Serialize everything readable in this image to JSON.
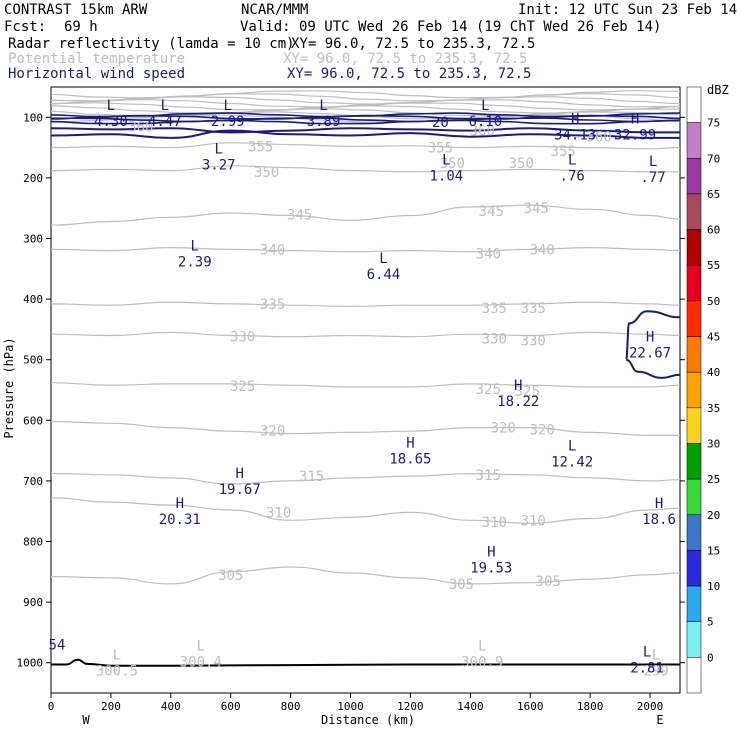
{
  "header": {
    "model": "CONTRAST 15km ARW",
    "center": "NCAR/MMM",
    "init": "Init: 12 UTC Sun 23 Feb 14",
    "fcst_label": "Fcst:",
    "fcst_value": "69 h",
    "valid": "Valid: 09 UTC Wed 26 Feb 14 (19 ChT Wed 26 Feb 14)",
    "fields": [
      {
        "name": "Radar reflectivity (lamda = 10 cm)",
        "xy": "XY=  96.0, 72.5 to 235.3, 72.5",
        "color": "#000000"
      },
      {
        "name": "Potential temperature",
        "xy": "XY=  96.0, 72.5 to 235.3, 72.5",
        "color": "#bdbdbd"
      },
      {
        "name": "Horizontal wind speed",
        "xy": "XY=  96.0, 72.5 to 235.3, 72.5",
        "color": "#1a1a80"
      }
    ]
  },
  "axes": {
    "ylabel": "Pressure (hPa)",
    "xlabel": "Distance (km)",
    "yticks": [
      100,
      200,
      300,
      400,
      500,
      600,
      700,
      800,
      900,
      1000
    ],
    "xticks": [
      0,
      200,
      400,
      600,
      800,
      1000,
      1200,
      1400,
      1600,
      1800,
      2000
    ],
    "west": "W",
    "east": "E"
  },
  "colorbar": {
    "unit": "dBZ",
    "levels": [
      {
        "label": "75",
        "color": "#c27ec9"
      },
      {
        "label": "70",
        "color": "#9a3aa2"
      },
      {
        "label": "65",
        "color": "#a84a5c"
      },
      {
        "label": "60",
        "color": "#b00000"
      },
      {
        "label": "55",
        "color": "#e8001e"
      },
      {
        "label": "50",
        "color": "#ff2a00"
      },
      {
        "label": "45",
        "color": "#ff7a00"
      },
      {
        "label": "40",
        "color": "#ffa200"
      },
      {
        "label": "35",
        "color": "#ffd21e"
      },
      {
        "label": "30",
        "color": "#00a000"
      },
      {
        "label": "25",
        "color": "#38d838"
      },
      {
        "label": "20",
        "color": "#3c78c8"
      },
      {
        "label": "15",
        "color": "#2a2ae0"
      },
      {
        "label": "10",
        "color": "#2aa8f0"
      },
      {
        "label": "5",
        "color": "#7af0f0"
      },
      {
        "label": "0",
        "color": "#ffffff"
      }
    ]
  },
  "chart_data": {
    "type": "contour cross-section",
    "xlim": [
      0,
      2100
    ],
    "ylim": [
      1050,
      50
    ],
    "theta_contours": [
      {
        "label": "355",
        "x": [
          0,
          200,
          400,
          600,
          800,
          1000,
          1200,
          1400,
          1600,
          1800,
          2000,
          2100
        ],
        "p": [
          150,
          148,
          150,
          142,
          145,
          148,
          147,
          150,
          148,
          150,
          152,
          150
        ]
      },
      {
        "label": "350",
        "x": [
          0,
          200,
          400,
          600,
          800,
          1000,
          1200,
          1400,
          1600,
          1800,
          2000,
          2100
        ],
        "p": [
          188,
          186,
          188,
          180,
          183,
          188,
          190,
          188,
          186,
          188,
          190,
          190
        ]
      },
      {
        "label": "345",
        "x": [
          0,
          200,
          400,
          600,
          800,
          1000,
          1200,
          1400,
          1600,
          1800,
          2000,
          2100
        ],
        "p": [
          278,
          272,
          265,
          258,
          262,
          270,
          262,
          248,
          245,
          252,
          262,
          268
        ]
      },
      {
        "label": "340",
        "x": [
          0,
          200,
          400,
          600,
          800,
          1000,
          1200,
          1400,
          1600,
          1800,
          2000,
          2100
        ],
        "p": [
          318,
          320,
          315,
          318,
          320,
          322,
          320,
          322,
          318,
          315,
          318,
          320
        ]
      },
      {
        "label": "335",
        "x": [
          0,
          200,
          400,
          600,
          800,
          1000,
          1200,
          1400,
          1600,
          1800,
          2000,
          2100
        ],
        "p": [
          408,
          410,
          405,
          408,
          410,
          412,
          410,
          410,
          408,
          405,
          408,
          410
        ]
      },
      {
        "label": "330",
        "x": [
          0,
          200,
          400,
          600,
          800,
          1000,
          1200,
          1400,
          1600,
          1800,
          2000,
          2100
        ],
        "p": [
          458,
          460,
          455,
          460,
          462,
          460,
          462,
          458,
          460,
          455,
          458,
          460
        ]
      },
      {
        "label": "325",
        "x": [
          0,
          200,
          400,
          600,
          800,
          1000,
          1200,
          1400,
          1600,
          1800,
          2000,
          2100
        ],
        "p": [
          538,
          542,
          540,
          540,
          542,
          545,
          545,
          540,
          542,
          545,
          545,
          542
        ]
      },
      {
        "label": "320",
        "x": [
          0,
          200,
          400,
          600,
          800,
          1000,
          1200,
          1400,
          1600,
          1800,
          2000,
          2100
        ],
        "p": [
          602,
          605,
          612,
          618,
          622,
          620,
          618,
          612,
          612,
          620,
          625,
          625
        ]
      },
      {
        "label": "315",
        "x": [
          0,
          200,
          400,
          600,
          800,
          1000,
          1200,
          1400,
          1600,
          1800,
          2000,
          2100
        ],
        "p": [
          688,
          690,
          695,
          705,
          700,
          695,
          692,
          688,
          690,
          695,
          700,
          698
        ]
      },
      {
        "label": "310",
        "x": [
          0,
          200,
          400,
          600,
          800,
          1000,
          1200,
          1400,
          1600,
          1800,
          2000,
          2100
        ],
        "p": [
          728,
          735,
          740,
          748,
          765,
          760,
          752,
          765,
          770,
          762,
          748,
          745
        ]
      },
      {
        "label": "305",
        "x": [
          0,
          200,
          400,
          600,
          800,
          1000,
          1200,
          1400,
          1600,
          1800,
          2000,
          2100
        ],
        "p": [
          858,
          860,
          870,
          850,
          842,
          852,
          860,
          870,
          868,
          862,
          855,
          852
        ]
      }
    ],
    "theta_labels": [
      {
        "text": "360",
        "x": 300,
        "p": 115
      },
      {
        "text": "360",
        "x": 1440,
        "p": 122
      },
      {
        "text": "360",
        "x": 1830,
        "p": 132
      },
      {
        "text": "355",
        "x": 700,
        "p": 148
      },
      {
        "text": "355",
        "x": 1300,
        "p": 150
      },
      {
        "text": "355",
        "x": 1710,
        "p": 156
      },
      {
        "text": "350",
        "x": 720,
        "p": 190
      },
      {
        "text": "350",
        "x": 1340,
        "p": 175
      },
      {
        "text": "350",
        "x": 1570,
        "p": 175
      },
      {
        "text": "345",
        "x": 830,
        "p": 260
      },
      {
        "text": "345",
        "x": 1470,
        "p": 255
      },
      {
        "text": "345",
        "x": 1620,
        "p": 250
      },
      {
        "text": "340",
        "x": 740,
        "p": 318
      },
      {
        "text": "340",
        "x": 1460,
        "p": 325
      },
      {
        "text": "340",
        "x": 1640,
        "p": 318
      },
      {
        "text": "335",
        "x": 740,
        "p": 408
      },
      {
        "text": "335",
        "x": 1480,
        "p": 415
      },
      {
        "text": "335",
        "x": 1610,
        "p": 415
      },
      {
        "text": "330",
        "x": 640,
        "p": 462
      },
      {
        "text": "330",
        "x": 1480,
        "p": 465
      },
      {
        "text": "330",
        "x": 1610,
        "p": 468
      },
      {
        "text": "325",
        "x": 640,
        "p": 543
      },
      {
        "text": "325",
        "x": 1460,
        "p": 548
      },
      {
        "text": "325",
        "x": 1590,
        "p": 552
      },
      {
        "text": "320",
        "x": 740,
        "p": 617
      },
      {
        "text": "320",
        "x": 1510,
        "p": 612
      },
      {
        "text": "320",
        "x": 1640,
        "p": 615
      },
      {
        "text": "315",
        "x": 870,
        "p": 692
      },
      {
        "text": "315",
        "x": 1460,
        "p": 690
      },
      {
        "text": "310",
        "x": 760,
        "p": 752
      },
      {
        "text": "310",
        "x": 1480,
        "p": 768
      },
      {
        "text": "310",
        "x": 1610,
        "p": 765
      },
      {
        "text": "305",
        "x": 600,
        "p": 855
      },
      {
        "text": "305",
        "x": 1370,
        "p": 870
      },
      {
        "text": "305",
        "x": 1660,
        "p": 865
      }
    ],
    "theta_extrema": [
      {
        "type": "L",
        "value": "300.5",
        "x": 220,
        "p": 1005
      },
      {
        "type": "L",
        "value": "300.4",
        "x": 500,
        "p": 990
      },
      {
        "type": "L",
        "value": "300.9",
        "x": 1440,
        "p": 990
      },
      {
        "type": "L",
        "value": "299",
        "x": 2020,
        "p": 1005
      }
    ],
    "wind_extrema": [
      {
        "type": "L",
        "value": "4.30",
        "x": 200,
        "p": 98
      },
      {
        "type": "L",
        "value": "4.47",
        "x": 380,
        "p": 98
      },
      {
        "type": "L",
        "value": "2.99",
        "x": 590,
        "p": 98
      },
      {
        "type": "L",
        "value": "3.89",
        "x": 910,
        "p": 98
      },
      {
        "type": "L",
        "value": "6.10",
        "x": 1450,
        "p": 98
      },
      {
        "type": "H",
        "value": "34.13",
        "x": 1750,
        "p": 120
      },
      {
        "type": "H",
        "value": "32.99",
        "x": 1950,
        "p": 120
      },
      {
        "type": "L",
        "value": "3.27",
        "x": 560,
        "p": 170
      },
      {
        "type": "L",
        "value": "1.04",
        "x": 1320,
        "p": 188
      },
      {
        "type": "L",
        "value": ".76",
        "x": 1740,
        "p": 188
      },
      {
        "type": "L",
        "value": ".77",
        "x": 2010,
        "p": 190
      },
      {
        "type": "L",
        "value": "2.39",
        "x": 480,
        "p": 330
      },
      {
        "type": "L",
        "value": "6.44",
        "x": 1110,
        "p": 350
      },
      {
        "type": "H",
        "value": "22.67",
        "x": 2000,
        "p": 480
      },
      {
        "type": "H",
        "value": "18.22",
        "x": 1560,
        "p": 560
      },
      {
        "type": "H",
        "value": "18.65",
        "x": 1200,
        "p": 655
      },
      {
        "type": "L",
        "value": "12.42",
        "x": 1740,
        "p": 660
      },
      {
        "type": "H",
        "value": "19.67",
        "x": 630,
        "p": 705
      },
      {
        "type": "H",
        "value": "20.31",
        "x": 430,
        "p": 755
      },
      {
        "type": "H",
        "value": "18.6",
        "x": 2030,
        "p": 755
      },
      {
        "type": "H",
        "value": "19.53",
        "x": 1470,
        "p": 835
      },
      {
        "type": "L",
        "value": "2.81",
        "x": 1990,
        "p": 1000
      }
    ],
    "wind_contour_labels": [
      {
        "text": "20",
        "x": 1300,
        "p": 108
      },
      {
        "text": "54",
        "x": 20,
        "p": 970
      }
    ],
    "terrain": {
      "x": [
        0,
        50,
        90,
        120,
        200,
        400,
        800,
        1200,
        1600,
        2000,
        2100
      ],
      "p": [
        1003,
        1003,
        995,
        1002,
        1005,
        1005,
        1004,
        1003,
        1003,
        1003,
        1003
      ]
    }
  }
}
